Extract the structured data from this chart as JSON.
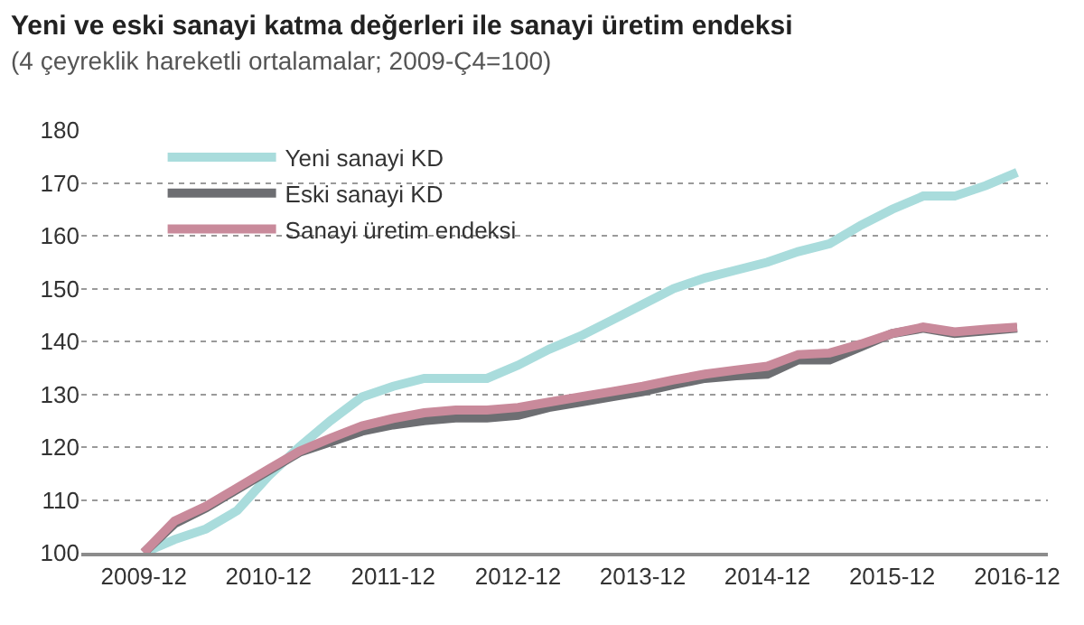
{
  "chart_data": {
    "type": "line",
    "title": "Yeni ve eski sanayi katma değerleri ile sanayi üretim endeksi",
    "subtitle": "(4 çeyreklik hareketli ortalamalar; 2009-Ç4=100)",
    "x": [
      "2009-12",
      "2010-03",
      "2010-06",
      "2010-09",
      "2010-12",
      "2011-03",
      "2011-06",
      "2011-09",
      "2011-12",
      "2012-03",
      "2012-06",
      "2012-09",
      "2012-12",
      "2013-03",
      "2013-06",
      "2013-09",
      "2013-12",
      "2014-03",
      "2014-06",
      "2014-09",
      "2014-12",
      "2015-03",
      "2015-06",
      "2015-09",
      "2015-12",
      "2016-03",
      "2016-06",
      "2016-09",
      "2016-12"
    ],
    "series": [
      {
        "name": "Yeni sanayi KD",
        "color": "#a9dcdc",
        "values": [
          100,
          102.5,
          104.5,
          108,
          114.5,
          120,
          125,
          129.5,
          131.5,
          133,
          133,
          133,
          135.5,
          138.5,
          141,
          144,
          147,
          150,
          152,
          153.5,
          155,
          157,
          158.5,
          162,
          165,
          167.5,
          167.5,
          169.5,
          172
        ]
      },
      {
        "name": "Eski sanayi KD",
        "color": "#6d6e72",
        "values": [
          100,
          105.5,
          108.5,
          112,
          115.5,
          119,
          121,
          123,
          124.2,
          125,
          125.5,
          125.5,
          126,
          127.5,
          128.5,
          129.5,
          130.5,
          131.8,
          133,
          133.5,
          133.8,
          136.5,
          136.5,
          139,
          141.5,
          142.5,
          141.5,
          142,
          142.5
        ]
      },
      {
        "name": "Sanayi üretim endeksi",
        "color": "#c98a9b",
        "values": [
          100,
          106,
          108.8,
          112.3,
          115.8,
          119.2,
          121.7,
          124,
          125.4,
          126.5,
          127,
          127,
          127.5,
          128.5,
          129.5,
          130.5,
          131.5,
          132.7,
          133.8,
          134.6,
          135.3,
          137.5,
          137.8,
          139.5,
          141.5,
          142.7,
          141.8,
          142.3,
          142.7
        ]
      }
    ],
    "xlim": [
      "2009-06",
      "2017-03"
    ],
    "xticks": [
      {
        "value": "2009-12",
        "label": "2009-12"
      },
      {
        "value": "2010-12",
        "label": "2010-12"
      },
      {
        "value": "2011-12",
        "label": "2011-12"
      },
      {
        "value": "2012-12",
        "label": "2012-12"
      },
      {
        "value": "2013-12",
        "label": "2013-12"
      },
      {
        "value": "2014-12",
        "label": "2014-12"
      },
      {
        "value": "2015-12",
        "label": "2015-12"
      },
      {
        "value": "2016-12",
        "label": "2016-12"
      }
    ],
    "ylim": [
      100,
      180
    ],
    "yticks": [
      100,
      110,
      120,
      130,
      140,
      150,
      160,
      170,
      180
    ],
    "grid": "y",
    "legend": "top left",
    "marker": "none",
    "line_style": "solid"
  }
}
